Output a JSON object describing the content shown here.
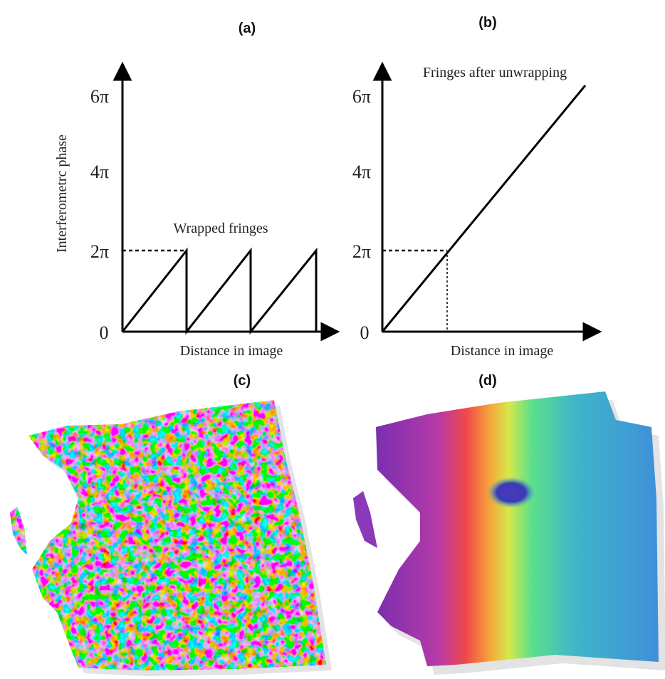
{
  "panels": [
    {
      "label": "(a)",
      "y_axis_label": "Interferometrc phase",
      "ticks": [
        "6π",
        "4π",
        "2π",
        "0"
      ],
      "annotation": "Wrapped fringes",
      "x_axis_label": "Distance in image"
    },
    {
      "label": "(b)",
      "ticks": [
        "6π",
        "4π",
        "2π",
        "0"
      ],
      "annotation": "Fringes after unwrapping",
      "x_axis_label": "Distance in image"
    },
    {
      "label": "(c)"
    },
    {
      "label": "(d)"
    }
  ]
}
